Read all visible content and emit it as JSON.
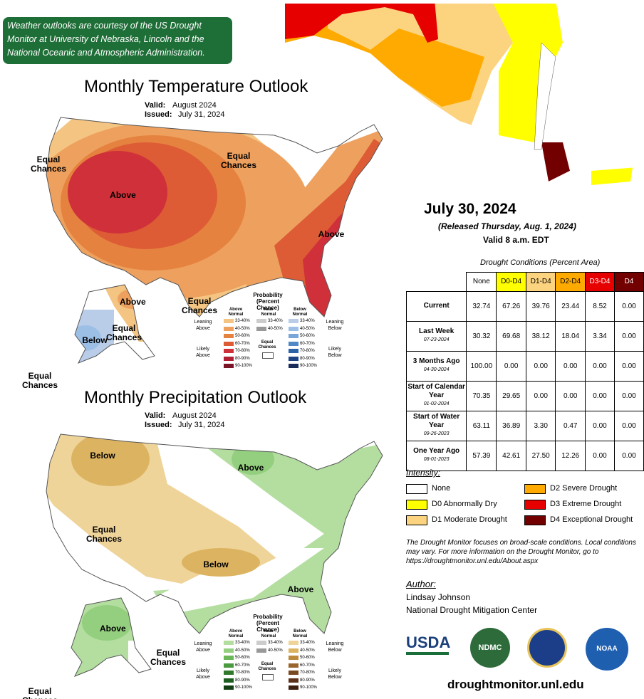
{
  "banner": "Weather outlooks are courtesy of the US Drought Monitor at University of Nebraska, Lincoln and the National Oceanic and Atmospheric Administration.",
  "temperature_outlook": {
    "title": "Monthly Temperature Outlook",
    "valid_label": "Valid:",
    "valid": "August 2024",
    "issued_label": "Issued:",
    "issued": "July 31, 2024",
    "map_labels": [
      "Equal Chances",
      "Above",
      "Equal Chances",
      "Above",
      "Equal Chances",
      "Above",
      "Equal Chances",
      "Below",
      "Equal Chances"
    ],
    "legend": {
      "title": "Probability (Percent Chance)",
      "columns": [
        "Above Normal",
        "Near Normal",
        "Below Normal"
      ],
      "levels": [
        "33-40%",
        "40-50%",
        "50-60%",
        "60-70%",
        "70-80%",
        "80-90%",
        "90-100%"
      ],
      "near_levels": [
        "33-40%",
        "40-50%"
      ],
      "below_levels": [
        "33-40%",
        "40-50%",
        "50-60%",
        "60-70%",
        "70-80%",
        "80-90%",
        "90-100%"
      ],
      "equal": "Equal Chances",
      "sides": [
        "Leaning Above",
        "Likely Above",
        "Leaning Below",
        "Likely Below"
      ]
    }
  },
  "precipitation_outlook": {
    "title": "Monthly Precipitation Outlook",
    "valid_label": "Valid:",
    "valid": "August 2024",
    "issued_label": "Issued:",
    "issued": "July 31, 2024",
    "map_labels": [
      "Below",
      "Above",
      "Equal Chances",
      "Below",
      "Above",
      "Above",
      "Equal Chances",
      "Equal Chances"
    ],
    "legend": {
      "title": "Probability (Percent Chance)",
      "columns": [
        "Above Normal",
        "Near Normal",
        "Below Normal"
      ],
      "levels": [
        "33-40%",
        "40-50%",
        "50-60%",
        "60-70%",
        "70-80%",
        "80-90%",
        "90-100%"
      ],
      "near_levels": [
        "33-40%",
        "40-50%"
      ],
      "below_levels": [
        "33-40%",
        "40-50%",
        "50-60%",
        "60-70%",
        "70-80%",
        "80-90%",
        "90-100%"
      ],
      "equal": "Equal Chances",
      "sides": [
        "Leaning Above",
        "Likely Above",
        "Leaning Below",
        "Likely Below"
      ]
    }
  },
  "drought": {
    "date": "July 30, 2024",
    "released": "(Released Thursday, Aug. 1, 2024)",
    "valid": "Valid 8 a.m. EDT",
    "table": {
      "title": "Drought Conditions (Percent Area)",
      "columns": [
        "None",
        "D0-D4",
        "D1-D4",
        "D2-D4",
        "D3-D4",
        "D4"
      ],
      "rows": [
        {
          "label": "Current",
          "values": [
            "32.74",
            "67.26",
            "39.76",
            "23.44",
            "8.52",
            "0.00"
          ]
        },
        {
          "label": "Last Week",
          "date": "07-23-2024",
          "values": [
            "30.32",
            "69.68",
            "38.12",
            "18.04",
            "3.34",
            "0.00"
          ]
        },
        {
          "label": "3 Months Ago",
          "date": "04-30-2024",
          "values": [
            "100.00",
            "0.00",
            "0.00",
            "0.00",
            "0.00",
            "0.00"
          ]
        },
        {
          "label": "Start of Calendar Year",
          "date": "01-02-2024",
          "values": [
            "70.35",
            "29.65",
            "0.00",
            "0.00",
            "0.00",
            "0.00"
          ]
        },
        {
          "label": "Start of Water Year",
          "date": "09-26-2023",
          "values": [
            "63.11",
            "36.89",
            "3.30",
            "0.47",
            "0.00",
            "0.00"
          ]
        },
        {
          "label": "One Year Ago",
          "date": "08-01-2023",
          "values": [
            "57.39",
            "42.61",
            "27.50",
            "12.26",
            "0.00",
            "0.00"
          ]
        }
      ]
    },
    "intensity_title": "Intensity:",
    "intensity": [
      "None",
      "D0 Abnormally Dry",
      "D1 Moderate Drought",
      "D2 Severe Drought",
      "D3 Extreme Drought",
      "D4 Exceptional Drought"
    ],
    "note": "The Drought Monitor focuses on broad-scale conditions. Local conditions may vary. For more information on the Drought Monitor, go to https://droughtmonitor.unl.edu/About.aspx",
    "author_label": "Author:",
    "author": "Lindsay Johnson",
    "organization": "National Drought Mitigation Center",
    "logos": [
      "USDA",
      "NDMC",
      "NOAA"
    ],
    "url": "droughtmonitor.unl.edu"
  }
}
